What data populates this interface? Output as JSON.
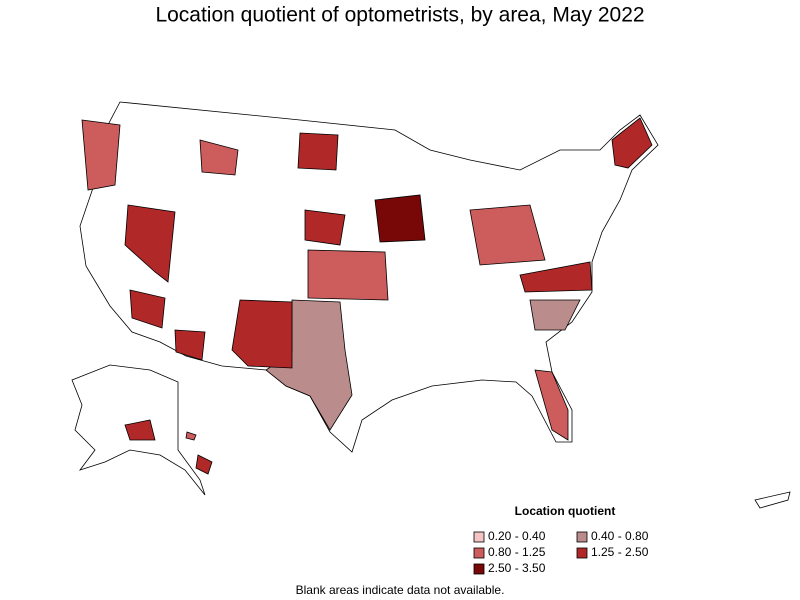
{
  "title": "Location quotient of optometrists, by area, May 2022",
  "legend": {
    "title": "Location quotient",
    "items": [
      {
        "label": "0.20 - 0.40",
        "color": "#f2c4c4"
      },
      {
        "label": "0.40 - 0.80",
        "color": "#bb8c8c"
      },
      {
        "label": "0.80 - 1.25",
        "color": "#cd5c5c"
      },
      {
        "label": "1.25 - 2.50",
        "color": "#b02828"
      },
      {
        "label": "2.50 - 3.50",
        "color": "#780808"
      }
    ]
  },
  "note": "Blank areas indicate data not available."
}
